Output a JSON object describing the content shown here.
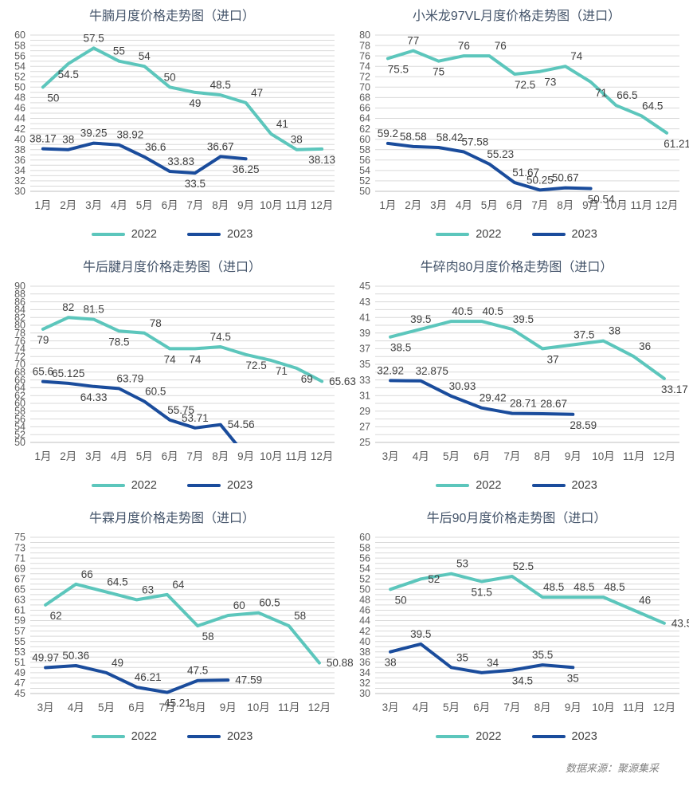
{
  "page": {
    "source_note": "数据来源：聚源集采"
  },
  "colors": {
    "series_2022": "#5CC6BC",
    "series_2023": "#1A4C9C",
    "title_text": "#44546A",
    "axis_text": "#595959",
    "label_text": "#404040",
    "grid": "#D9D9D9",
    "axis_line": "#BFBFBF",
    "source_text": "#808080"
  },
  "chart_data": [
    {
      "type": "line",
      "title": "牛腩月度价格走势图（进口）",
      "ylim": [
        30,
        60
      ],
      "y_step": 2,
      "grid_step": 1,
      "grid": true,
      "legend_position": "bottom",
      "categories": [
        "1月",
        "2月",
        "3月",
        "4月",
        "5月",
        "6月",
        "7月",
        "8月",
        "9月",
        "10月",
        "11月",
        "12月"
      ],
      "series": [
        {
          "name": "2022",
          "color": "#5CC6BC",
          "values": [
            50,
            54.5,
            57.5,
            55,
            54,
            50,
            49,
            48.5,
            47,
            41,
            38,
            38.13
          ],
          "labels": [
            "50",
            "54.5",
            "57.5",
            "55",
            "54",
            "50",
            "49",
            "48.5",
            "47",
            "41",
            "38",
            "38.13"
          ],
          "label_pos": [
            "br",
            "b",
            "a",
            "a",
            "a",
            "a",
            "b",
            "a",
            "ar",
            "ar",
            "a",
            "b"
          ]
        },
        {
          "name": "2023",
          "color": "#1A4C9C",
          "values": [
            38.17,
            38,
            39.25,
            38.92,
            36.6,
            33.83,
            33.5,
            36.67,
            36.25
          ],
          "labels": [
            "38.17",
            "38",
            "39.25",
            "38.92",
            "36.6",
            "33.83",
            "33.5",
            "36.67",
            "36.25"
          ],
          "label_pos": [
            "a",
            "a",
            "a",
            "ar",
            "ar",
            "ar",
            "b",
            "a",
            "b"
          ]
        }
      ]
    },
    {
      "type": "line",
      "title": "小米龙97VL月度价格走势图（进口）",
      "ylim": [
        50,
        80
      ],
      "y_step": 2,
      "grid_step": 2,
      "grid": true,
      "legend_position": "bottom",
      "categories": [
        "1月",
        "2月",
        "3月",
        "4月",
        "5月",
        "6月",
        "7月",
        "8月",
        "9月",
        "10月",
        "11月",
        "12月"
      ],
      "series": [
        {
          "name": "2022",
          "color": "#5CC6BC",
          "values": [
            75.5,
            77,
            75,
            76,
            76,
            72.5,
            73,
            74,
            71,
            66.5,
            64.5,
            61.21
          ],
          "labels": [
            "75.5",
            "77",
            "75",
            "76",
            "76",
            "72.5",
            "73",
            "74",
            "71",
            "66.5",
            "64.5",
            "61.21"
          ],
          "label_pos": [
            "br",
            "a",
            "b",
            "a",
            "ar",
            "br",
            "br",
            "ar",
            "br",
            "ar",
            "ar",
            "br"
          ]
        },
        {
          "name": "2023",
          "color": "#1A4C9C",
          "values": [
            59.2,
            58.58,
            58.42,
            57.58,
            55.23,
            51.67,
            50.25,
            50.67,
            50.54
          ],
          "labels": [
            "59.2",
            "58.58",
            "58.42",
            "57.58",
            "55.23",
            "51.67",
            "50.25",
            "50.67",
            "50.54"
          ],
          "label_pos": [
            "a",
            "a",
            "ar",
            "ar",
            "ar",
            "ar",
            "a",
            "a",
            "br"
          ]
        }
      ]
    },
    {
      "type": "line",
      "title": "牛后腱月度价格走势图（进口）",
      "ylim": [
        50,
        90
      ],
      "y_step": 2,
      "grid_step": 2,
      "grid": true,
      "legend_position": "bottom",
      "categories": [
        "1月",
        "2月",
        "3月",
        "4月",
        "5月",
        "6月",
        "7月",
        "8月",
        "9月",
        "10月",
        "11月",
        "12月"
      ],
      "series": [
        {
          "name": "2022",
          "color": "#5CC6BC",
          "values": [
            79,
            82,
            81.5,
            78.5,
            78,
            74,
            74,
            74.5,
            72.5,
            71,
            69,
            65.63
          ],
          "labels": [
            "79",
            "82",
            "81.5",
            "78.5",
            "78",
            "74",
            "74",
            "74.5",
            "72.5",
            "71",
            "69",
            "65.63"
          ],
          "label_pos": [
            "b",
            "a",
            "a",
            "b",
            "ar",
            "b",
            "b",
            "a",
            "br",
            "br",
            "br",
            "r"
          ]
        },
        {
          "name": "2023",
          "color": "#1A4C9C",
          "values": [
            65.6,
            65.125,
            64.33,
            63.79,
            60.5,
            55.75,
            53.71,
            54.56,
            46.6
          ],
          "labels": [
            "65.6",
            "65.125",
            "64.33",
            "63.79",
            "60.5",
            "55.75",
            "53.71",
            "54.56",
            ""
          ],
          "label_pos": [
            "a",
            "a",
            "b",
            "ar",
            "ar",
            "ar",
            "a",
            "r",
            ""
          ]
        }
      ]
    },
    {
      "type": "line",
      "title": "牛碎肉80月度价格走势图（进口）",
      "ylim": [
        25,
        45
      ],
      "y_step": 2,
      "grid_step": 1,
      "grid": true,
      "legend_position": "bottom",
      "categories": [
        "3月",
        "4月",
        "5月",
        "6月",
        "7月",
        "8月",
        "9月",
        "10月",
        "11月",
        "12月"
      ],
      "series": [
        {
          "name": "2022",
          "color": "#5CC6BC",
          "values": [
            38.5,
            39.5,
            40.5,
            40.5,
            39.5,
            37,
            37.5,
            38,
            36,
            33.17
          ],
          "labels": [
            "38.5",
            "39.5",
            "40.5",
            "40.5",
            "39.5",
            "37",
            "37.5",
            "38",
            "36",
            "33.17"
          ],
          "label_pos": [
            "br",
            "a",
            "ar",
            "ar",
            "ar",
            "br",
            "ar",
            "ar",
            "ar",
            "br"
          ]
        },
        {
          "name": "2023",
          "color": "#1A4C9C",
          "values": [
            32.92,
            32.875,
            30.93,
            29.42,
            28.71,
            28.67,
            28.59
          ],
          "labels": [
            "32.92",
            "32.875",
            "30.93",
            "29.42",
            "28.71",
            "28.67",
            "28.59"
          ],
          "label_pos": [
            "a",
            "ar",
            "ar",
            "ar",
            "ar",
            "ar",
            "br"
          ]
        }
      ]
    },
    {
      "type": "line",
      "title": "牛霖月度价格走势图（进口）",
      "ylim": [
        45,
        75
      ],
      "y_step": 2,
      "grid_step": 1,
      "grid": true,
      "legend_position": "bottom",
      "categories": [
        "3月",
        "4月",
        "5月",
        "6月",
        "7月",
        "8月",
        "9月",
        "10月",
        "11月",
        "12月"
      ],
      "series": [
        {
          "name": "2022",
          "color": "#5CC6BC",
          "values": [
            62,
            66,
            64.5,
            63,
            64,
            58,
            60,
            60.5,
            58,
            50.88
          ],
          "labels": [
            "62",
            "66",
            "64.5",
            "63",
            "64",
            "58",
            "60",
            "60.5",
            "58",
            "50.88"
          ],
          "label_pos": [
            "br",
            "ar",
            "ar",
            "ar",
            "ar",
            "br",
            "ar",
            "ar",
            "ar",
            "r"
          ]
        },
        {
          "name": "2023",
          "color": "#1A4C9C",
          "values": [
            49.97,
            50.36,
            49,
            46.21,
            45.21,
            47.5,
            47.59
          ],
          "labels": [
            "49.97",
            "50.36",
            "49",
            "46.21",
            "45.21",
            "47.5",
            "47.59"
          ],
          "label_pos": [
            "a",
            "a",
            "ar",
            "ar",
            "br",
            "a",
            "r"
          ]
        }
      ]
    },
    {
      "type": "line",
      "title": "牛后90月度价格走势图（进口）",
      "ylim": [
        30,
        60
      ],
      "y_step": 2,
      "grid_step": 1,
      "grid": true,
      "legend_position": "bottom",
      "categories": [
        "3月",
        "4月",
        "5月",
        "6月",
        "7月",
        "8月",
        "9月",
        "10月",
        "11月",
        "12月"
      ],
      "series": [
        {
          "name": "2022",
          "color": "#5CC6BC",
          "values": [
            50,
            52,
            53,
            51.5,
            52.5,
            48.5,
            48.5,
            48.5,
            46,
            43.5
          ],
          "labels": [
            "50",
            "52",
            "53",
            "51.5",
            "52.5",
            "48.5",
            "48.5",
            "48.5",
            "46",
            "43.5"
          ],
          "label_pos": [
            "br",
            "r",
            "ar",
            "b",
            "ar",
            "ar",
            "ar",
            "ar",
            "ar",
            "r"
          ]
        },
        {
          "name": "2023",
          "color": "#1A4C9C",
          "values": [
            38,
            39.5,
            35,
            34,
            34.5,
            35.5,
            35
          ],
          "labels": [
            "38",
            "39.5",
            "35",
            "34",
            "34.5",
            "35.5",
            "35"
          ],
          "label_pos": [
            "b",
            "a",
            "ar",
            "ar",
            "br",
            "a",
            "b"
          ]
        }
      ]
    }
  ]
}
